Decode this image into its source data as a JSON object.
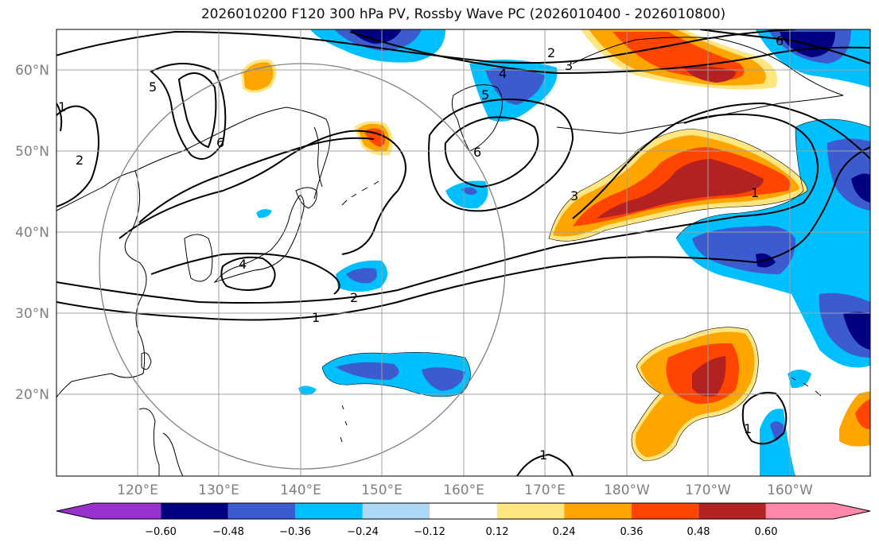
{
  "title": "2026010200 F120 300 hPa PV, Rossby Wave PC (2026010400 - 2026010800)",
  "map": {
    "lon_labels": [
      "120°E",
      "130°E",
      "140°E",
      "150°E",
      "160°E",
      "170°E",
      "180°W",
      "170°W",
      "160°W"
    ],
    "lat_labels": [
      "60°N",
      "50°N",
      "40°N",
      "30°N",
      "20°N"
    ],
    "contour_labels": [
      "1",
      "1",
      "2",
      "2",
      "3",
      "4",
      "4",
      "5",
      "6",
      "6",
      "3",
      "1",
      "1",
      "1",
      "5",
      "2",
      "6"
    ],
    "colors": {
      "land": "#000000",
      "contour": "#000000",
      "grid": "#a0a0a0",
      "circle": "#808080"
    }
  },
  "colorbar": {
    "tick_labels": [
      "−0.60",
      "−0.48",
      "−0.36",
      "−0.24",
      "−0.12",
      "0.12",
      "0.24",
      "0.36",
      "0.48",
      "0.60"
    ],
    "colors": [
      "#9932cc",
      "#000080",
      "#3b5bcf",
      "#00bfff",
      "#add8f6",
      "#ffffff",
      "#ffe680",
      "#ffa500",
      "#ff4500",
      "#b22222",
      "#ff88aa"
    ]
  }
}
